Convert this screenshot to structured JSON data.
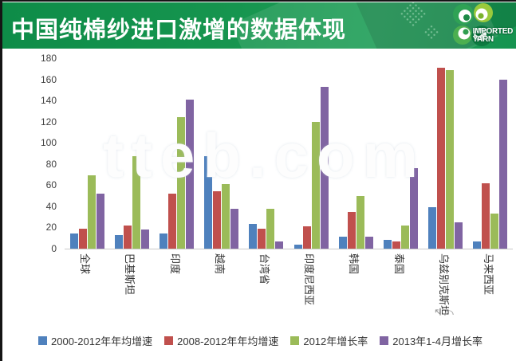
{
  "header": {
    "title": "中国纯棉纱进口激增的数据体现",
    "logo": {
      "line1": "IMPORTED",
      "line2": "YARN"
    }
  },
  "watermark": "tteb.com",
  "chart_data": {
    "type": "bar",
    "title": "中国纯棉纱进口激增的数据体现",
    "categories": [
      "全球",
      "巴基斯坦",
      "印度",
      "越南",
      "台湾省",
      "印度尼西亚",
      "韩国",
      "泰国",
      "乌兹别克斯坦",
      "马来西亚"
    ],
    "series": [
      {
        "name": "2000-2012年年均增速",
        "color": "#4F81BD",
        "values": [
          14,
          13,
          14,
          87,
          23,
          4,
          11,
          8,
          39,
          7
        ]
      },
      {
        "name": "2008-2012年年均增速",
        "color": "#C0504D",
        "values": [
          19,
          22,
          52,
          54,
          19,
          21,
          35,
          7,
          171,
          62
        ]
      },
      {
        "name": "2012年增长率",
        "color": "#9BBB59",
        "values": [
          69,
          87,
          124,
          61,
          38,
          120,
          50,
          22,
          169,
          33
        ]
      },
      {
        "name": "2013年1-4月增长率",
        "color": "#8064A2",
        "values": [
          52,
          18,
          141,
          38,
          7,
          153,
          11,
          76,
          25,
          160
        ]
      }
    ],
    "ylim": [
      0,
      180
    ],
    "ytick_step": 20,
    "grid": false,
    "legend_position": "bottom",
    "xlabel": "",
    "ylabel": ""
  }
}
